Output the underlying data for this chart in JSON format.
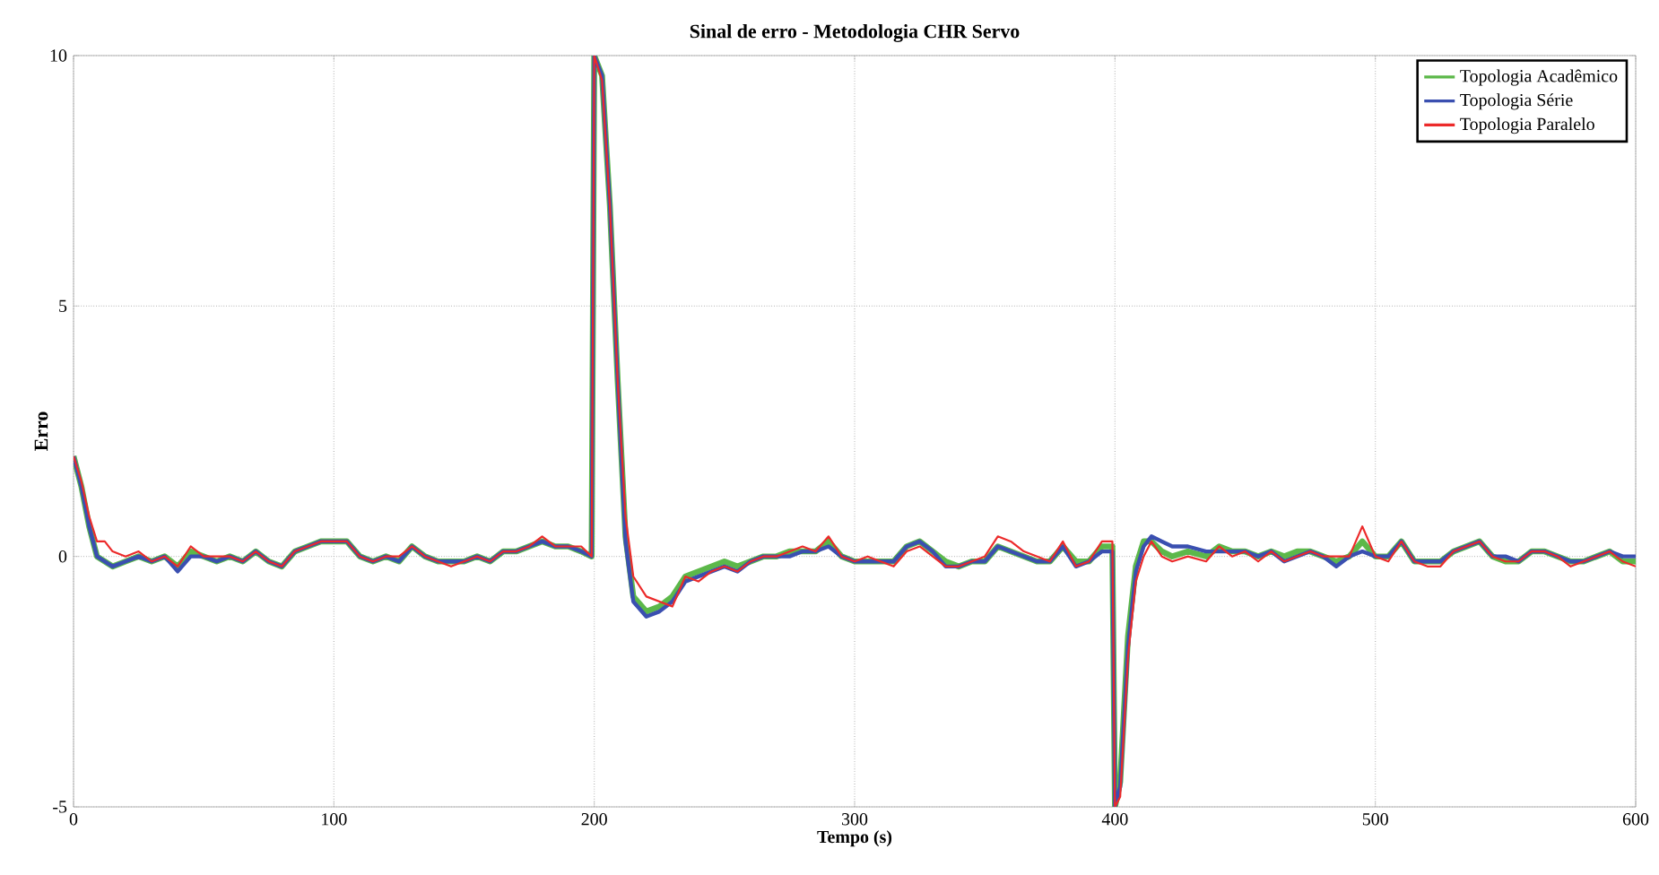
{
  "chart_data": {
    "type": "line",
    "title": "Sinal de erro - Metodologia CHR Servo",
    "xlabel": "Tempo (s)",
    "ylabel": "Erro",
    "x": [
      0,
      3,
      6,
      9,
      12,
      15,
      20,
      25,
      30,
      35,
      40,
      45,
      50,
      55,
      60,
      65,
      70,
      75,
      80,
      85,
      90,
      95,
      100,
      105,
      110,
      115,
      120,
      125,
      130,
      135,
      140,
      145,
      150,
      155,
      160,
      165,
      170,
      175,
      180,
      185,
      190,
      195,
      199,
      200,
      203,
      206,
      209,
      212,
      215,
      220,
      225,
      230,
      235,
      240,
      245,
      250,
      255,
      260,
      265,
      270,
      275,
      280,
      285,
      290,
      295,
      300,
      305,
      310,
      315,
      320,
      325,
      330,
      335,
      340,
      345,
      350,
      355,
      360,
      365,
      370,
      375,
      380,
      385,
      390,
      395,
      399,
      400,
      402,
      405,
      408,
      411,
      414,
      418,
      422,
      428,
      435,
      440,
      445,
      450,
      455,
      460,
      465,
      470,
      475,
      480,
      485,
      490,
      495,
      500,
      505,
      510,
      515,
      520,
      525,
      530,
      535,
      540,
      545,
      550,
      555,
      560,
      565,
      570,
      575,
      580,
      585,
      590,
      595,
      600
    ],
    "series": [
      {
        "name": "Topologia Acadêmico",
        "color": "#5cb84a",
        "values": [
          2.0,
          1.4,
          0.6,
          0.0,
          -0.1,
          -0.2,
          -0.1,
          0.0,
          -0.1,
          0.0,
          -0.2,
          0.1,
          0.0,
          -0.1,
          0.0,
          -0.1,
          0.1,
          -0.1,
          -0.2,
          0.1,
          0.2,
          0.3,
          0.3,
          0.3,
          0.0,
          -0.1,
          0.0,
          -0.1,
          0.2,
          0.0,
          -0.1,
          -0.1,
          -0.1,
          0.0,
          -0.1,
          0.1,
          0.1,
          0.2,
          0.3,
          0.2,
          0.2,
          0.1,
          0.0,
          10,
          9.6,
          7.0,
          3.5,
          0.4,
          -0.8,
          -1.1,
          -1.0,
          -0.8,
          -0.4,
          -0.3,
          -0.2,
          -0.1,
          -0.2,
          -0.1,
          0.0,
          0.0,
          0.1,
          0.1,
          0.1,
          0.3,
          0.0,
          -0.1,
          -0.1,
          -0.1,
          -0.1,
          0.2,
          0.3,
          0.1,
          -0.1,
          -0.2,
          -0.1,
          -0.1,
          0.2,
          0.1,
          0.0,
          -0.1,
          -0.1,
          0.2,
          -0.1,
          -0.1,
          0.2,
          0.2,
          -5.0,
          -4.5,
          -1.6,
          -0.2,
          0.3,
          0.3,
          0.1,
          0.0,
          0.1,
          0.0,
          0.2,
          0.1,
          0.1,
          0.0,
          0.1,
          0.0,
          0.1,
          0.1,
          0.0,
          -0.1,
          0.0,
          0.3,
          0.0,
          0.0,
          0.3,
          -0.1,
          -0.1,
          -0.1,
          0.1,
          0.2,
          0.3,
          0.0,
          -0.1,
          -0.1,
          0.1,
          0.1,
          0.0,
          -0.1,
          -0.1,
          0.0,
          0.1,
          -0.1,
          -0.1
        ]
      },
      {
        "name": "Topologia Série",
        "color": "#3a4fb0",
        "values": [
          2.0,
          1.4,
          0.6,
          0.0,
          -0.1,
          -0.2,
          -0.1,
          0.0,
          -0.1,
          0.0,
          -0.3,
          0.0,
          0.0,
          -0.1,
          0.0,
          -0.1,
          0.1,
          -0.1,
          -0.2,
          0.1,
          0.2,
          0.3,
          0.3,
          0.3,
          0.0,
          -0.1,
          0.0,
          -0.1,
          0.2,
          0.0,
          -0.1,
          -0.1,
          -0.1,
          0.0,
          -0.1,
          0.1,
          0.1,
          0.2,
          0.3,
          0.2,
          0.2,
          0.1,
          0.0,
          10,
          9.6,
          7.0,
          3.5,
          0.3,
          -0.9,
          -1.2,
          -1.1,
          -0.9,
          -0.5,
          -0.4,
          -0.3,
          -0.2,
          -0.3,
          -0.1,
          0.0,
          0.0,
          0.0,
          0.1,
          0.1,
          0.2,
          0.0,
          -0.1,
          -0.1,
          -0.1,
          -0.1,
          0.2,
          0.3,
          0.1,
          -0.2,
          -0.2,
          -0.1,
          -0.1,
          0.2,
          0.1,
          0.0,
          -0.1,
          -0.1,
          0.2,
          -0.2,
          -0.1,
          0.1,
          0.1,
          -5.0,
          -4.6,
          -1.8,
          -0.3,
          0.2,
          0.4,
          0.3,
          0.2,
          0.2,
          0.1,
          0.1,
          0.1,
          0.1,
          0.0,
          0.1,
          -0.1,
          0.0,
          0.1,
          0.0,
          -0.2,
          0.0,
          0.1,
          0.0,
          0.0,
          0.3,
          -0.1,
          -0.1,
          -0.1,
          0.1,
          0.2,
          0.3,
          0.0,
          0.0,
          -0.1,
          0.1,
          0.1,
          0.0,
          -0.1,
          -0.1,
          0.0,
          0.1,
          0.0,
          0.0
        ]
      },
      {
        "name": "Topologia Paralelo",
        "color": "#ec2a2a",
        "values": [
          2.0,
          1.5,
          0.8,
          0.3,
          0.3,
          0.1,
          0.0,
          0.1,
          -0.1,
          0.0,
          -0.2,
          0.2,
          0.0,
          0.0,
          0.0,
          -0.1,
          0.1,
          -0.1,
          -0.2,
          0.1,
          0.2,
          0.3,
          0.3,
          0.3,
          0.0,
          -0.1,
          0.0,
          0.0,
          0.2,
          0.0,
          -0.1,
          -0.2,
          -0.1,
          0.0,
          -0.1,
          0.1,
          0.1,
          0.2,
          0.4,
          0.2,
          0.2,
          0.2,
          0.0,
          10,
          9.5,
          7.0,
          3.5,
          0.8,
          -0.4,
          -0.8,
          -0.9,
          -1.0,
          -0.4,
          -0.5,
          -0.3,
          -0.2,
          -0.3,
          -0.1,
          0.0,
          0.0,
          0.1,
          0.2,
          0.1,
          0.4,
          0.0,
          -0.1,
          0.0,
          -0.1,
          -0.2,
          0.1,
          0.2,
          0.0,
          -0.2,
          -0.2,
          -0.1,
          0.0,
          0.4,
          0.3,
          0.1,
          0.0,
          -0.1,
          0.3,
          -0.2,
          -0.1,
          0.3,
          0.3,
          -5.0,
          -4.8,
          -2.0,
          -0.5,
          0.0,
          0.3,
          0.0,
          -0.1,
          0.0,
          -0.1,
          0.2,
          0.0,
          0.1,
          -0.1,
          0.1,
          -0.1,
          0.0,
          0.1,
          0.0,
          0.0,
          0.0,
          0.6,
          0.0,
          -0.1,
          0.3,
          -0.1,
          -0.2,
          -0.2,
          0.1,
          0.2,
          0.3,
          0.0,
          -0.1,
          -0.1,
          0.1,
          0.1,
          0.0,
          -0.2,
          -0.1,
          0.0,
          0.1,
          -0.1,
          -0.2
        ]
      }
    ],
    "xlim": [
      0,
      600
    ],
    "ylim": [
      -5,
      10
    ],
    "xticks": [
      0,
      100,
      200,
      300,
      400,
      500,
      600
    ],
    "yticks": [
      -5,
      0,
      5,
      10
    ],
    "grid": true,
    "legend": "top right"
  }
}
